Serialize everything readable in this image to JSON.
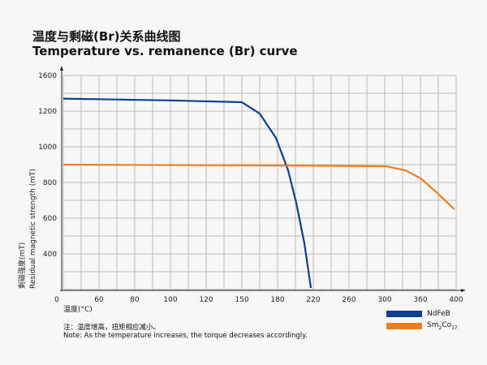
{
  "title_cn": "温度与剩磁(Br)关系曲线图",
  "title_en": "Temperature vs. remanence (Br) curve",
  "note_cn": "注：温度增高，扭矩相应减小。",
  "note_en": "Note: As the temperature increases, the torque decreases accordingly.",
  "chart_data": {
    "type": "line",
    "xlabel": "温度(°C)",
    "ylabel_cn": "剩磁强度(mT)",
    "ylabel_en": "Residual magnetic strength (mT)",
    "x_ticks": [
      "0",
      "60",
      "80",
      "100",
      "120",
      "150",
      "180",
      "220",
      "260",
      "300",
      "360",
      "400"
    ],
    "y_ticks": [
      "400",
      "600",
      "800",
      "1000",
      "1200",
      "1600"
    ],
    "grid": true,
    "legend_placement": "bottom-right",
    "series": [
      {
        "name": "NdFeB",
        "color": "#0d3f8f",
        "x": [
          40,
          100,
          150,
          165,
          178.6,
          191.8,
          200.9,
          210,
          217.3
        ],
        "y": [
          1340,
          1320,
          1300,
          1186,
          1050,
          868,
          686,
          459,
          209
        ]
      },
      {
        "name": "Sm2Co17",
        "legend_main": "Sm",
        "legend_sub1": "2",
        "legend_mid": "Co",
        "legend_sub2": "17",
        "color": "#f07c1e",
        "x": [
          40,
          200,
          302,
          335,
          360.3,
          378,
          398
        ],
        "y": [
          900,
          895,
          891,
          868,
          823,
          745,
          650
        ]
      }
    ]
  }
}
